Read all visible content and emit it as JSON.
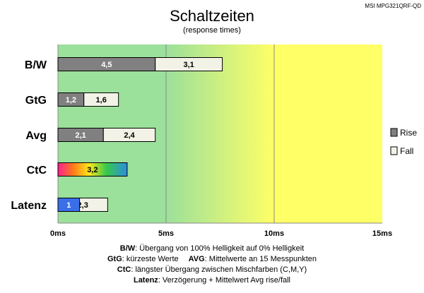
{
  "model": "MSI MPG321QRF-QD",
  "chart_data": {
    "type": "bar",
    "orientation": "horizontal",
    "stacked": true,
    "title": "Schaltzeiten",
    "subtitle": "(response times)",
    "categories": [
      "B/W",
      "GtG",
      "Avg",
      "CtC",
      "Latenz"
    ],
    "series": [
      {
        "name": "Rise",
        "color": "#808080",
        "values": [
          4.5,
          1.2,
          2.1,
          null,
          null
        ],
        "labels": [
          "4,5",
          "1,2",
          "2,1",
          "",
          ""
        ]
      },
      {
        "name": "Fall",
        "color": "#f2f2e6",
        "values": [
          3.1,
          1.6,
          2.4,
          null,
          2.3
        ],
        "labels": [
          "3,1",
          "1,6",
          "2,4",
          "",
          "2,3"
        ]
      }
    ],
    "special_bars": [
      {
        "category": "CtC",
        "value": 3.2,
        "label": "3,2",
        "fill": "rainbow"
      },
      {
        "category": "Latenz",
        "value": 1,
        "label": "1",
        "fill": "#3a6fe8"
      }
    ],
    "x_axis": {
      "min": 0,
      "max": 15,
      "ticks": [
        0,
        5,
        10,
        15
      ],
      "tick_labels": [
        "0ms",
        "5ms",
        "10ms",
        "15ms"
      ]
    },
    "gridlines": [
      5,
      10
    ],
    "background_zones": [
      {
        "from": 0,
        "to": 5,
        "color": "#9be09b"
      },
      {
        "from": 5,
        "to": 10,
        "color_from": "#9be09b",
        "color_to": "#ffff66"
      },
      {
        "from": 10,
        "to": 15,
        "color": "#ffff66"
      }
    ],
    "legend": {
      "position": "right",
      "entries": [
        {
          "label": "Rise",
          "color": "#808080"
        },
        {
          "label": "Fall",
          "color": "#f2f2e6"
        }
      ]
    }
  },
  "notes": [
    {
      "key": "B/W",
      "text": ":  Übergang von 100% Helligkeit auf 0% Helligkeit"
    },
    {
      "key": "GtG",
      "text": ": kürzeste  Werte",
      "key2": "AVG",
      "text2": ": Mittelwerte  an 15 Messpunkten"
    },
    {
      "key": "CtC",
      "text": ": längster Übergang  zwischen Mischfarben  (C,M,Y)"
    },
    {
      "key": "Latenz",
      "text": ": Verzögerung  + Mittelwert Avg rise/fall"
    }
  ]
}
